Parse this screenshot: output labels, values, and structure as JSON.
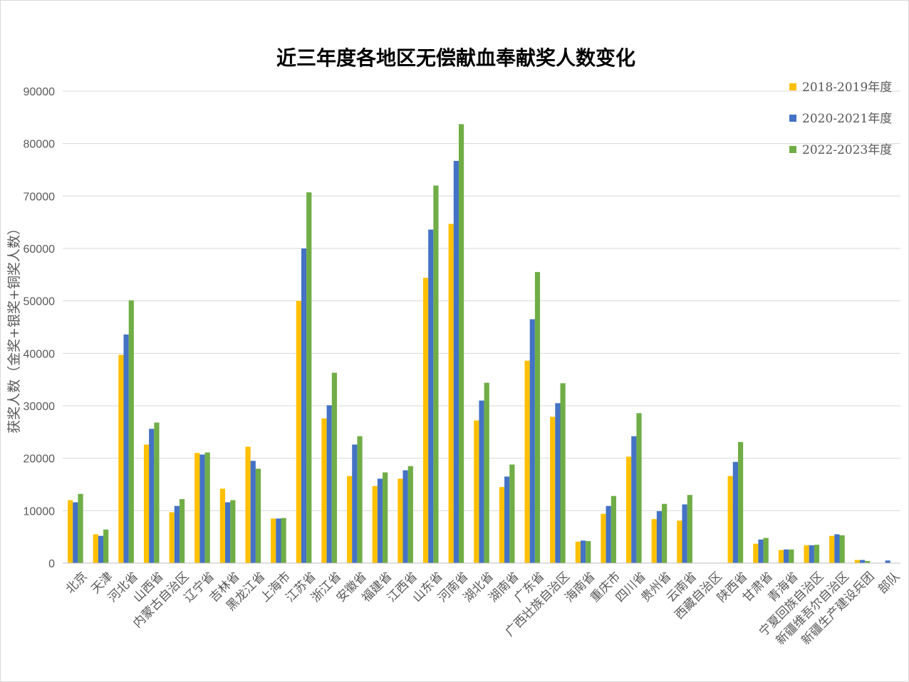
{
  "chart_data": {
    "type": "bar",
    "title": "近三年度各地区无偿献血奉献奖人数变化",
    "xlabel": "",
    "ylabel": "获奖人数（金奖+银奖+铜奖人数）",
    "ylim": [
      0,
      90000
    ],
    "yticks": [
      0,
      10000,
      20000,
      30000,
      40000,
      50000,
      60000,
      70000,
      80000,
      90000
    ],
    "grid": true,
    "legend_position": "top-right",
    "categories": [
      "北京",
      "天津",
      "河北省",
      "山西省",
      "内蒙古自治区",
      "辽宁省",
      "吉林省",
      "黑龙江省",
      "上海市",
      "江苏省",
      "浙江省",
      "安徽省",
      "福建省",
      "江西省",
      "山东省",
      "河南省",
      "湖北省",
      "湖南省",
      "广东省",
      "广西壮族自治区",
      "海南省",
      "重庆市",
      "四川省",
      "贵州省",
      "云南省",
      "西藏自治区",
      "陕西省",
      "甘肃省",
      "青海省",
      "宁夏回族自治区",
      "新疆维吾尔自治区",
      "新疆生产建设兵团",
      "部队"
    ],
    "series": [
      {
        "name": "2018-2019年度",
        "color": "#ffc000",
        "values": [
          12000,
          5500,
          39700,
          22600,
          9700,
          21000,
          14200,
          22200,
          8500,
          50000,
          27600,
          16600,
          14700,
          16100,
          54400,
          64700,
          27200,
          14500,
          38600,
          27900,
          4100,
          9400,
          20300,
          8400,
          8100,
          0,
          16600,
          3700,
          2500,
          3400,
          5200,
          600,
          0
        ]
      },
      {
        "name": "2020-2021年度",
        "color": "#4472c4",
        "values": [
          11600,
          5200,
          43600,
          25600,
          10900,
          20700,
          11600,
          19500,
          8500,
          60000,
          30100,
          22600,
          16100,
          17700,
          63600,
          76700,
          31000,
          16500,
          46500,
          30500,
          4300,
          10900,
          24200,
          9900,
          11200,
          0,
          19300,
          4500,
          2600,
          3400,
          5500,
          600,
          500
        ]
      },
      {
        "name": "2022-2023年度",
        "color": "#70ad47",
        "values": [
          13200,
          6400,
          50100,
          26800,
          12200,
          21100,
          12000,
          18000,
          8600,
          70700,
          36300,
          24200,
          17300,
          18500,
          72000,
          83700,
          34400,
          18800,
          55500,
          34300,
          4200,
          12800,
          28600,
          11300,
          13000,
          0,
          23100,
          4800,
          2600,
          3500,
          5300,
          400,
          0
        ]
      }
    ]
  }
}
